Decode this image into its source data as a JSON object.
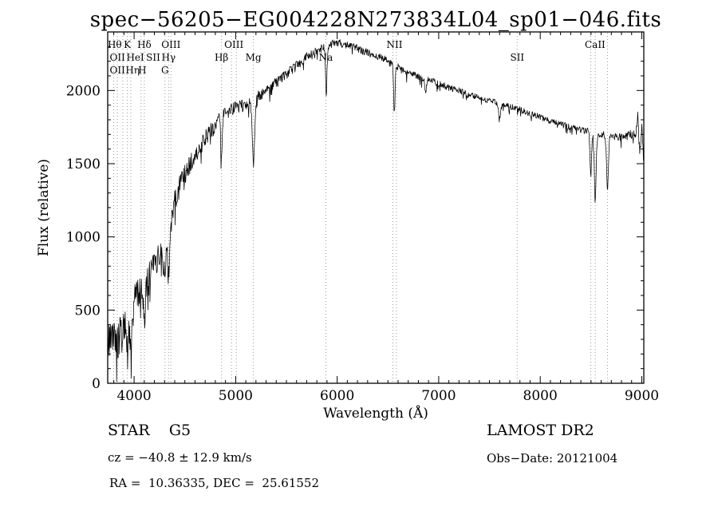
{
  "title": "spec−56205−EG004228N273834L04_sp01−046.fits",
  "footer": {
    "class_label": "STAR    G5",
    "survey": "LAMOST DR2",
    "cz": "cz = −40.8 ± 12.9 km/s",
    "obs_date": "Obs−Date: 20121004",
    "radec": "RA =  10.36335, DEC =  25.61552"
  },
  "chart_data": {
    "type": "line",
    "title": "spec−56205−EG004228N273834L04_sp01−046.fits",
    "xlabel": "Wavelength (Å)",
    "ylabel": "Flux (relative)",
    "xlim": [
      3740,
      9020
    ],
    "ylim": [
      0,
      2400
    ],
    "x_ticks": [
      4000,
      5000,
      6000,
      7000,
      8000,
      9000
    ],
    "y_ticks": [
      0,
      500,
      1000,
      1500,
      2000
    ],
    "x_minor_tick_step": 100,
    "y_minor_tick_step": 100,
    "grid": false,
    "legend": "none",
    "line_color": "#000000",
    "dotted_line_color": "#9a9a9a",
    "frame_color": "#000000",
    "sample_step": 4,
    "noise_seed": 20121004,
    "continuum_anchors": [
      [
        3740,
        340
      ],
      [
        3760,
        250
      ],
      [
        3780,
        380
      ],
      [
        3800,
        320
      ],
      [
        3830,
        280
      ],
      [
        3860,
        340
      ],
      [
        3900,
        400
      ],
      [
        3940,
        370
      ],
      [
        3970,
        400
      ],
      [
        4000,
        540
      ],
      [
        4040,
        620
      ],
      [
        4080,
        600
      ],
      [
        4120,
        660
      ],
      [
        4160,
        740
      ],
      [
        4200,
        820
      ],
      [
        4240,
        850
      ],
      [
        4280,
        870
      ],
      [
        4320,
        950
      ],
      [
        4360,
        1060
      ],
      [
        4400,
        1240
      ],
      [
        4440,
        1330
      ],
      [
        4480,
        1400
      ],
      [
        4520,
        1450
      ],
      [
        4560,
        1510
      ],
      [
        4600,
        1570
      ],
      [
        4650,
        1620
      ],
      [
        4700,
        1680
      ],
      [
        4750,
        1720
      ],
      [
        4800,
        1770
      ],
      [
        4850,
        1800
      ],
      [
        4900,
        1840
      ],
      [
        4950,
        1870
      ],
      [
        5000,
        1890
      ],
      [
        5050,
        1890
      ],
      [
        5100,
        1910
      ],
      [
        5150,
        1930
      ],
      [
        5200,
        1950
      ],
      [
        5250,
        1970
      ],
      [
        5300,
        2000
      ],
      [
        5350,
        2030
      ],
      [
        5400,
        2060
      ],
      [
        5450,
        2090
      ],
      [
        5500,
        2110
      ],
      [
        5550,
        2140
      ],
      [
        5600,
        2170
      ],
      [
        5650,
        2200
      ],
      [
        5700,
        2230
      ],
      [
        5750,
        2250
      ],
      [
        5800,
        2270
      ],
      [
        5850,
        2290
      ],
      [
        5900,
        2300
      ],
      [
        5950,
        2320
      ],
      [
        6000,
        2330
      ],
      [
        6050,
        2320
      ],
      [
        6100,
        2310
      ],
      [
        6150,
        2300
      ],
      [
        6200,
        2290
      ],
      [
        6250,
        2270
      ],
      [
        6300,
        2260
      ],
      [
        6350,
        2240
      ],
      [
        6400,
        2230
      ],
      [
        6450,
        2220
      ],
      [
        6500,
        2200
      ],
      [
        6550,
        2180
      ],
      [
        6600,
        2160
      ],
      [
        6650,
        2140
      ],
      [
        6700,
        2120
      ],
      [
        6750,
        2110
      ],
      [
        6800,
        2090
      ],
      [
        6850,
        2080
      ],
      [
        6900,
        2070
      ],
      [
        6950,
        2060
      ],
      [
        7000,
        2050
      ],
      [
        7100,
        2020
      ],
      [
        7200,
        2000
      ],
      [
        7300,
        1970
      ],
      [
        7400,
        1950
      ],
      [
        7500,
        1930
      ],
      [
        7600,
        1910
      ],
      [
        7700,
        1890
      ],
      [
        7800,
        1870
      ],
      [
        7900,
        1840
      ],
      [
        8000,
        1820
      ],
      [
        8100,
        1790
      ],
      [
        8200,
        1770
      ],
      [
        8300,
        1750
      ],
      [
        8400,
        1730
      ],
      [
        8500,
        1720
      ],
      [
        8600,
        1700
      ],
      [
        8700,
        1690
      ],
      [
        8800,
        1680
      ],
      [
        8900,
        1700
      ],
      [
        8940,
        1700
      ],
      [
        8960,
        1820
      ],
      [
        8980,
        1560
      ],
      [
        9000,
        1760
      ],
      [
        9020,
        1500
      ]
    ],
    "absorption_lines": [
      {
        "name": "CaII-K",
        "center": 3933,
        "width": 6,
        "depth": 180
      },
      {
        "name": "CaII-H",
        "center": 3968,
        "width": 6,
        "depth": 180
      },
      {
        "name": "Hdelta",
        "center": 4101,
        "width": 7,
        "depth": 220
      },
      {
        "name": "G-band",
        "center": 4304,
        "width": 15,
        "depth": 150
      },
      {
        "name": "Hgamma",
        "center": 4340,
        "width": 7,
        "depth": 260
      },
      {
        "name": "Hbeta",
        "center": 4861,
        "width": 7,
        "depth": 300
      },
      {
        "name": "Mg-b",
        "center": 5175,
        "width": 12,
        "depth": 430
      },
      {
        "name": "Na-D",
        "center": 5892,
        "width": 7,
        "depth": 340
      },
      {
        "name": "Halpha",
        "center": 6563,
        "width": 7,
        "depth": 330
      },
      {
        "name": "B-band",
        "center": 6870,
        "width": 8,
        "depth": 90
      },
      {
        "name": "A-band",
        "center": 7600,
        "width": 10,
        "depth": 100
      },
      {
        "name": "CaII-8498",
        "center": 8498,
        "width": 8,
        "depth": 300
      },
      {
        "name": "CaII-8542",
        "center": 8542,
        "width": 9,
        "depth": 470
      },
      {
        "name": "CaII-8662",
        "center": 8662,
        "width": 9,
        "depth": 380
      }
    ],
    "noise_anchors": [
      [
        3740,
        150
      ],
      [
        3900,
        130
      ],
      [
        4100,
        110
      ],
      [
        4300,
        95
      ],
      [
        4500,
        70
      ],
      [
        4800,
        55
      ],
      [
        5000,
        45
      ],
      [
        5300,
        38
      ],
      [
        5600,
        32
      ],
      [
        6000,
        28
      ],
      [
        6500,
        24
      ],
      [
        7000,
        22
      ],
      [
        7500,
        20
      ],
      [
        8000,
        20
      ],
      [
        8500,
        22
      ],
      [
        8800,
        25
      ],
      [
        9020,
        40
      ]
    ],
    "spectral_line_markers": [
      {
        "label": "Hθ",
        "wavelength": 3798,
        "row": 0
      },
      {
        "label": "K",
        "wavelength": 3933,
        "row": 0
      },
      {
        "label": "Hδ",
        "wavelength": 4101,
        "row": 0
      },
      {
        "label": "OIII",
        "wavelength": 4363,
        "row": 0
      },
      {
        "label": "OIII",
        "wavelength": 4983,
        "row": 0
      },
      {
        "label": "NII",
        "wavelength": 6565,
        "row": 0
      },
      {
        "label": "CaII",
        "wavelength": 8540,
        "row": 0
      },
      {
        "label": "OII",
        "wavelength": 3727,
        "row": 1
      },
      {
        "label": "HeI",
        "wavelength": 3889,
        "row": 1
      },
      {
        "label": "SII",
        "wavelength": 4068,
        "row": 1
      },
      {
        "label": "Hγ",
        "wavelength": 4340,
        "row": 1
      },
      {
        "label": "Hβ",
        "wavelength": 4861,
        "row": 1
      },
      {
        "label": "Mg",
        "wavelength": 5175,
        "row": 1
      },
      {
        "label": "Na",
        "wavelength": 5889,
        "row": 1
      },
      {
        "label": "SII",
        "wavelength": 7773,
        "row": 1
      },
      {
        "label": "OII",
        "wavelength": 3727,
        "row": 2
      },
      {
        "label": "Hη",
        "wavelength": 3835,
        "row": 2
      },
      {
        "label": "H",
        "wavelength": 3970,
        "row": 2
      },
      {
        "label": "G",
        "wavelength": 4304,
        "row": 2
      }
    ],
    "dotted_lines": [
      3727,
      3798,
      3835,
      3889,
      3933,
      3968,
      4068,
      4101,
      4304,
      4340,
      4363,
      4861,
      4959,
      5007,
      5175,
      5889,
      6548,
      6583,
      7773,
      8498,
      8542,
      8662
    ]
  }
}
